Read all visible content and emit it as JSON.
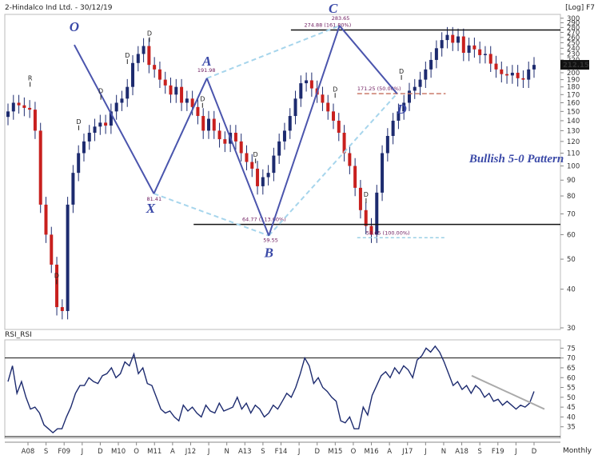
{
  "header": {
    "title": "2-Hindalco Ind Ltd. - 30/12/19",
    "scale": "[Log] F7",
    "rsi_label": "RSI_RSI",
    "period": "Monthly"
  },
  "chart_data": {
    "type": "candlestick",
    "ylim": [
      30,
      305
    ],
    "y_ticks": [
      30,
      40,
      50,
      60,
      70,
      80,
      90,
      100,
      110,
      120,
      130,
      140,
      150,
      160,
      170,
      180,
      190,
      200,
      210,
      220,
      230,
      240,
      250,
      260,
      270,
      280,
      290,
      300
    ],
    "x_labels": [
      "A08",
      "S",
      "F09",
      "J",
      "D",
      "M10",
      "O",
      "M11",
      "A",
      "J12",
      "J",
      "N",
      "A13",
      "S",
      "F14",
      "J",
      "D",
      "M15",
      "O",
      "M16",
      "A",
      "J17",
      "J",
      "N",
      "A18",
      "S",
      "F19",
      "J",
      "D"
    ],
    "last_price": "212.15",
    "pattern_points": [
      {
        "name": "O",
        "value": 246,
        "t": 15
      },
      {
        "name": "X",
        "value": 81.41,
        "t": 33
      },
      {
        "name": "A",
        "value": 191.98,
        "t": 45
      },
      {
        "name": "B",
        "value": 59.55,
        "t": 59
      },
      {
        "name": "C",
        "value": 283.65,
        "t": 75
      },
      {
        "name": "D",
        "value": 171.25,
        "t": 88
      }
    ],
    "levels": [
      {
        "label": "274.88 (161.80%)",
        "value": 274.88
      },
      {
        "label": "171.25 (50.00%)",
        "value": 171.25
      },
      {
        "label": "64.77 (113.00%)",
        "value": 64.77
      },
      {
        "label": "58.65 (100.00%)",
        "value": 58.65
      }
    ],
    "point_labels": [
      "191.98",
      "283.65",
      "81.41",
      "59.55"
    ],
    "pattern_title": "Bullish 5-0 Pattern",
    "divergence_markers": [
      "R",
      "D",
      "D",
      "D",
      "D",
      "D",
      "D",
      "D",
      "D",
      "D",
      "D"
    ],
    "rsi": {
      "name": "RSI_RSI",
      "levels": [
        30,
        70
      ],
      "ticks": [
        35,
        40,
        45,
        50,
        55,
        60,
        65,
        70,
        75
      ],
      "values": [
        58,
        66,
        52,
        58,
        50,
        44,
        45,
        42,
        36,
        34,
        32,
        34,
        34,
        40,
        45,
        52,
        56,
        56,
        60,
        58,
        57,
        61,
        62,
        65,
        60,
        62,
        68,
        66,
        72,
        62,
        65,
        57,
        56,
        50,
        44,
        42,
        43,
        40,
        38,
        46,
        43,
        45,
        42,
        40,
        46,
        43,
        42,
        47,
        43,
        44,
        45,
        50,
        44,
        47,
        42,
        46,
        44,
        40,
        42,
        46,
        44,
        48,
        52,
        50,
        55,
        62,
        70,
        66,
        57,
        60,
        55,
        53,
        50,
        48,
        38,
        37,
        40,
        34,
        34,
        45,
        41,
        51,
        56,
        61,
        63,
        60,
        65,
        62,
        66,
        64,
        60,
        69,
        71,
        75,
        73,
        76,
        73,
        68,
        62,
        56,
        58,
        54,
        56,
        52,
        56,
        54,
        50,
        52,
        48,
        49,
        46,
        48,
        46,
        44,
        46,
        45,
        47,
        53
      ]
    },
    "series": [
      {
        "name": "close",
        "values": [
          150,
          160,
          157,
          154,
          152,
          130,
          75,
          60,
          48,
          35,
          34,
          75,
          95,
          110,
          120,
          128,
          134,
          138,
          135,
          150,
          160,
          165,
          180,
          215,
          230,
          244,
          212,
          205,
          190,
          182,
          170,
          180,
          160,
          165,
          155,
          145,
          130,
          142,
          130,
          122,
          118,
          128,
          120,
          110,
          103,
          98,
          86,
          92,
          95,
          108,
          120,
          130,
          145,
          165,
          185,
          189,
          178,
          170,
          160,
          150,
          140,
          128,
          110,
          100,
          85,
          72,
          64,
          60,
          82,
          110,
          125,
          140,
          150,
          160,
          175,
          180,
          190,
          205,
          220,
          240,
          255,
          265,
          250,
          262,
          232,
          245,
          238,
          228,
          230,
          214,
          205,
          198,
          196,
          200,
          192,
          190,
          205,
          212
        ]
      }
    ]
  }
}
